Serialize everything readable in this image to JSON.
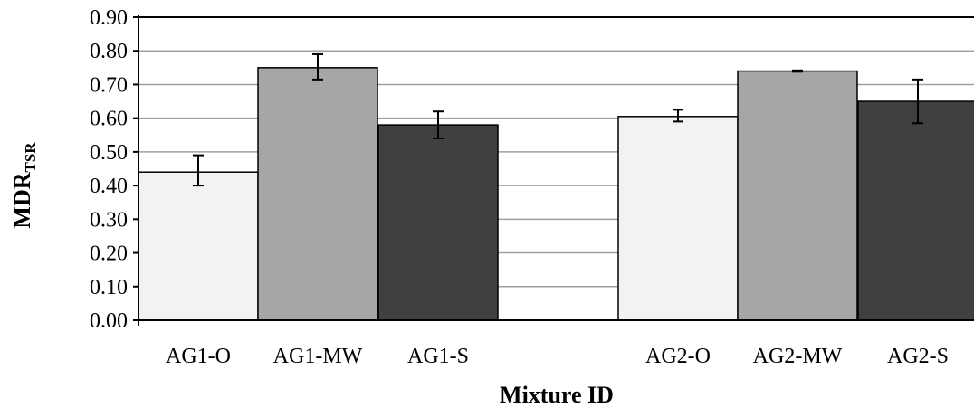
{
  "chart_data": {
    "type": "bar",
    "xlabel": "Mixture ID",
    "ylabel": "MDR",
    "ylabel_subscript": "TSR",
    "ylim": [
      0,
      0.9
    ],
    "yticks": [
      "0.00",
      "0.10",
      "0.20",
      "0.30",
      "0.40",
      "0.50",
      "0.60",
      "0.70",
      "0.80",
      "0.90"
    ],
    "grid": true,
    "legend": "none",
    "bars": [
      {
        "category": "AG1-O",
        "value": 0.44,
        "error_low": 0.4,
        "error_high": 0.49,
        "color": "#f2f2f2"
      },
      {
        "category": "AG1-MW",
        "value": 0.75,
        "error_low": 0.715,
        "error_high": 0.79,
        "color": "#a6a6a6"
      },
      {
        "category": "AG1-S",
        "value": 0.58,
        "error_low": 0.54,
        "error_high": 0.62,
        "color": "#404040"
      },
      {
        "category": "AG2-O",
        "value": 0.605,
        "error_low": 0.59,
        "error_high": 0.625,
        "color": "#f2f2f2"
      },
      {
        "category": "AG2-MW",
        "value": 0.74,
        "error_low": 0.738,
        "error_high": 0.742,
        "color": "#a6a6a6"
      },
      {
        "category": "AG2-S",
        "value": 0.65,
        "error_low": 0.585,
        "error_high": 0.715,
        "color": "#404040"
      }
    ]
  }
}
